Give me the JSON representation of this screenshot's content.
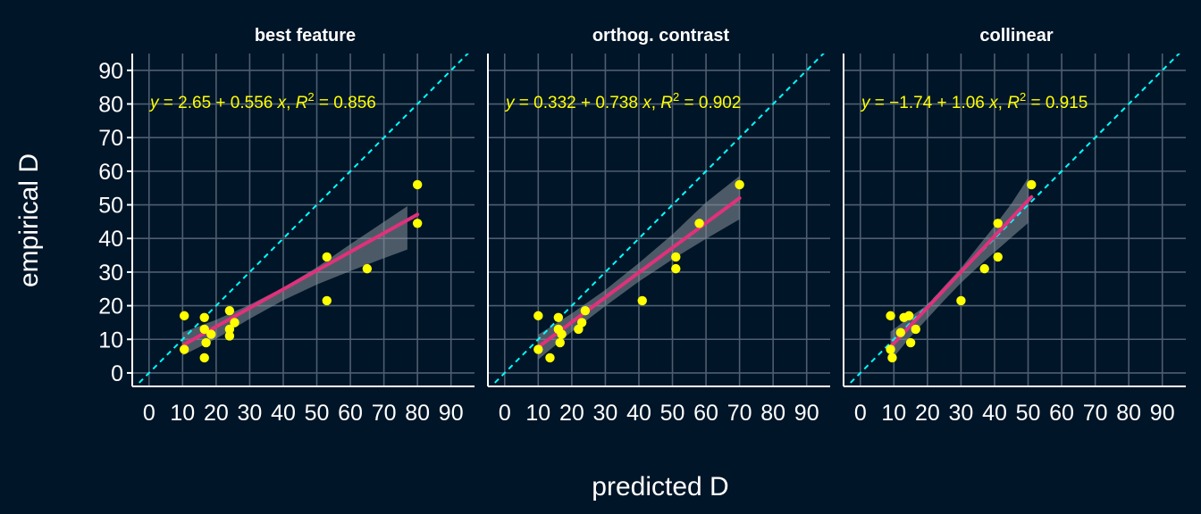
{
  "chart_data": {
    "type": "scatter",
    "xlabel": "predicted D",
    "ylabel": "empirical D",
    "xlim": [
      -5,
      97
    ],
    "ylim": [
      -4,
      95
    ],
    "xticks": [
      0,
      10,
      20,
      30,
      40,
      50,
      60,
      70,
      80,
      90
    ],
    "yticks": [
      0,
      10,
      20,
      30,
      40,
      50,
      60,
      70,
      80,
      90
    ],
    "grid": true,
    "identity_line": true,
    "colors": {
      "background": "#011528",
      "points": "#ffff00",
      "fit": "#e0317a",
      "identity": "#00ffff",
      "band": "#8a939c",
      "grid": "#4e5e70",
      "text": "#ffffff",
      "equation": "#ffff00"
    },
    "panels": [
      {
        "title": "best feature",
        "equation": {
          "y": "y",
          "eq1": " = 2.65 + 0.556 ",
          "x": "x",
          "sep": ", ",
          "r": "R",
          "sup": "2",
          "eq2": " = 0.856"
        },
        "intercept": 2.65,
        "slope": 0.556,
        "band": [
          [
            10,
            5.2,
            12.1
          ],
          [
            20,
            10.2,
            15.8
          ],
          [
            30,
            16.1,
            20.3
          ],
          [
            40,
            21.6,
            25.4
          ],
          [
            50,
            26.3,
            31.4
          ],
          [
            60,
            30.3,
            38.3
          ],
          [
            68,
            33.4,
            43.6
          ],
          [
            77,
            36.7,
            49.6
          ]
        ],
        "points": [
          {
            "x": 10.5,
            "y": 17
          },
          {
            "x": 10.5,
            "y": 7
          },
          {
            "x": 16.5,
            "y": 16.5
          },
          {
            "x": 16.5,
            "y": 13
          },
          {
            "x": 17,
            "y": 9
          },
          {
            "x": 16.5,
            "y": 4.5
          },
          {
            "x": 18.5,
            "y": 11.5
          },
          {
            "x": 24,
            "y": 18.5
          },
          {
            "x": 24,
            "y": 13
          },
          {
            "x": 24,
            "y": 11
          },
          {
            "x": 25.5,
            "y": 15
          },
          {
            "x": 53,
            "y": 34.5
          },
          {
            "x": 53,
            "y": 21.5
          },
          {
            "x": 65,
            "y": 31
          },
          {
            "x": 80,
            "y": 56
          },
          {
            "x": 80,
            "y": 44.5
          }
        ]
      },
      {
        "title": "orthog. contrast",
        "equation": {
          "y": "y",
          "eq1": " = 0.332 + 0.738 ",
          "x": "x",
          "sep": ", ",
          "r": "R",
          "sup": "2",
          "eq2": " = 0.902"
        },
        "intercept": 0.332,
        "slope": 0.738,
        "band": [
          [
            10,
            4.0,
            11.4
          ],
          [
            20,
            12.3,
            17.7
          ],
          [
            30,
            19.9,
            24.7
          ],
          [
            40,
            27.2,
            32.7
          ],
          [
            50,
            33.8,
            41.2
          ],
          [
            60,
            39.9,
            50.7
          ],
          [
            70,
            45.7,
            58.6
          ]
        ],
        "points": [
          {
            "x": 10,
            "y": 17
          },
          {
            "x": 10,
            "y": 7
          },
          {
            "x": 13.5,
            "y": 4.5
          },
          {
            "x": 16,
            "y": 16.5
          },
          {
            "x": 16,
            "y": 13
          },
          {
            "x": 16.5,
            "y": 9
          },
          {
            "x": 17,
            "y": 11.5
          },
          {
            "x": 22,
            "y": 13
          },
          {
            "x": 23,
            "y": 15
          },
          {
            "x": 24,
            "y": 18.5
          },
          {
            "x": 41,
            "y": 21.5
          },
          {
            "x": 51,
            "y": 34.5
          },
          {
            "x": 51,
            "y": 31
          },
          {
            "x": 58,
            "y": 44.5
          },
          {
            "x": 70,
            "y": 56
          }
        ]
      },
      {
        "title": "collinear",
        "equation": {
          "y": "y",
          "eq1": " = −1.74 + 1.06 ",
          "x": "x",
          "sep": ", ",
          "r": "R",
          "sup": "2",
          "eq2": " = 0.915"
        },
        "intercept": -1.74,
        "slope": 1.06,
        "band": [
          [
            9,
            3.6,
            12.3
          ],
          [
            15,
            10.8,
            16.8
          ],
          [
            20,
            16.2,
            20.3
          ],
          [
            25,
            21.6,
            25.8
          ],
          [
            30,
            26.8,
            31.2
          ],
          [
            35,
            31.5,
            37.5
          ],
          [
            40,
            35.9,
            43.7
          ],
          [
            45,
            40.3,
            50.3
          ],
          [
            50,
            44.6,
            58.0
          ]
        ],
        "points": [
          {
            "x": 9,
            "y": 17
          },
          {
            "x": 9,
            "y": 7
          },
          {
            "x": 9.5,
            "y": 4.5
          },
          {
            "x": 12,
            "y": 12
          },
          {
            "x": 13,
            "y": 16.5
          },
          {
            "x": 14.5,
            "y": 17
          },
          {
            "x": 15,
            "y": 9
          },
          {
            "x": 16.5,
            "y": 13
          },
          {
            "x": 30,
            "y": 21.5
          },
          {
            "x": 37,
            "y": 31
          },
          {
            "x": 41,
            "y": 44.5
          },
          {
            "x": 41,
            "y": 34.5
          },
          {
            "x": 51,
            "y": 56
          }
        ]
      }
    ]
  }
}
